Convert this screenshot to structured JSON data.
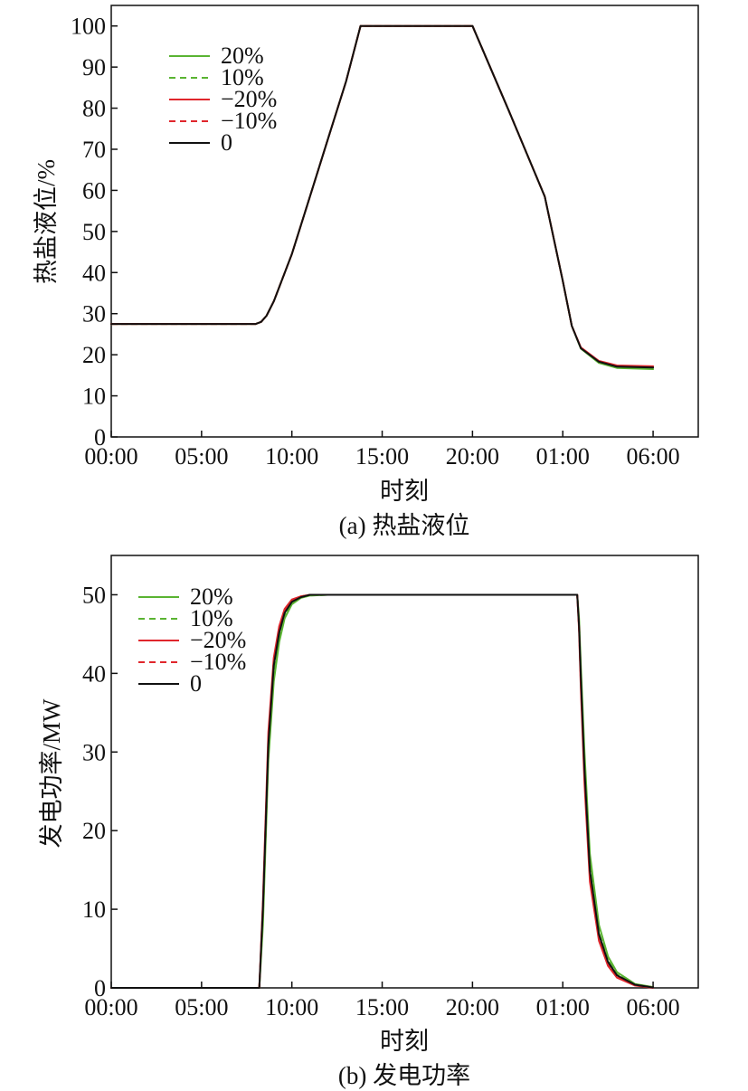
{
  "charts": [
    {
      "id": "a",
      "caption": "(a) 热盐液位",
      "ylabel": "热盐液位/%",
      "xlabel": "时刻",
      "y_ticks": [
        "0",
        "10",
        "20",
        "30",
        "40",
        "50",
        "60",
        "70",
        "80",
        "90",
        "100"
      ],
      "x_ticks": [
        "00:00",
        "05:00",
        "10:00",
        "15:00",
        "20:00",
        "01:00",
        "06:00"
      ]
    },
    {
      "id": "b",
      "caption": "(b) 发电功率",
      "ylabel": "发电功率/MW",
      "xlabel": "时刻",
      "y_ticks": [
        "0",
        "10",
        "20",
        "30",
        "40",
        "50"
      ],
      "x_ticks": [
        "00:00",
        "05:00",
        "10:00",
        "15:00",
        "20:00",
        "01:00",
        "06:00"
      ]
    }
  ],
  "chart_data": [
    {
      "type": "line",
      "title": "",
      "caption": "(a) 热盐液位",
      "xlabel": "时刻",
      "ylabel": "热盐液位/%",
      "x_unit": "hours since 00:00 (00:00 → 06:00 next day)",
      "xlim": [
        0,
        32.5
      ],
      "ylim": [
        0,
        105
      ],
      "x_tick_positions": [
        0,
        5,
        10,
        15,
        20,
        25,
        30
      ],
      "x_tick_labels": [
        "00:00",
        "05:00",
        "10:00",
        "15:00",
        "20:00",
        "01:00",
        "06:00"
      ],
      "grid": false,
      "legend_position": "top-left",
      "series": [
        {
          "name": "20%",
          "color": "#5ab432",
          "dash": "solid",
          "x": [
            0,
            8.0,
            8.3,
            8.6,
            9.0,
            10.0,
            11.0,
            12.0,
            13.0,
            13.8,
            15.0,
            17.0,
            20.0,
            22.0,
            24.0,
            25.0,
            25.5,
            26.0,
            27.0,
            28.0,
            30.0
          ],
          "y": [
            27.5,
            27.5,
            28.0,
            29.5,
            33.0,
            44.5,
            58.5,
            72.5,
            86.5,
            100,
            100,
            100,
            100,
            79.5,
            58.5,
            38.0,
            27.0,
            21.5,
            18.0,
            16.8,
            16.5
          ]
        },
        {
          "name": "10%",
          "color": "#5ab432",
          "dash": "dashed",
          "x": [
            0,
            8.0,
            8.3,
            8.6,
            9.0,
            10.0,
            11.0,
            12.0,
            13.0,
            13.8,
            15.0,
            17.0,
            20.0,
            22.0,
            24.0,
            25.0,
            25.5,
            26.0,
            27.0,
            28.0,
            30.0
          ],
          "y": [
            27.5,
            27.5,
            28.0,
            29.5,
            33.0,
            44.5,
            58.5,
            72.5,
            86.5,
            100,
            100,
            100,
            100,
            79.5,
            58.5,
            38.0,
            27.0,
            21.6,
            18.2,
            17.0,
            16.7
          ]
        },
        {
          "name": "−20%",
          "color": "#e0262c",
          "dash": "solid",
          "x": [
            0,
            8.0,
            8.3,
            8.6,
            9.0,
            10.0,
            11.0,
            12.0,
            13.0,
            13.8,
            15.0,
            17.0,
            20.0,
            22.0,
            24.0,
            25.0,
            25.5,
            26.0,
            27.0,
            28.0,
            30.0
          ],
          "y": [
            27.5,
            27.5,
            28.0,
            29.5,
            33.0,
            44.5,
            58.5,
            72.5,
            86.5,
            100,
            100,
            100,
            100,
            79.5,
            58.5,
            38.0,
            27.0,
            21.8,
            18.5,
            17.4,
            17.2
          ]
        },
        {
          "name": "−10%",
          "color": "#e0262c",
          "dash": "dashed",
          "x": [
            0,
            8.0,
            8.3,
            8.6,
            9.0,
            10.0,
            11.0,
            12.0,
            13.0,
            13.8,
            15.0,
            17.0,
            20.0,
            22.0,
            24.0,
            25.0,
            25.5,
            26.0,
            27.0,
            28.0,
            30.0
          ],
          "y": [
            27.5,
            27.5,
            28.0,
            29.5,
            33.0,
            44.5,
            58.5,
            72.5,
            86.5,
            100,
            100,
            100,
            100,
            79.5,
            58.5,
            38.0,
            27.0,
            21.7,
            18.4,
            17.2,
            17.0
          ]
        },
        {
          "name": "0",
          "color": "#111111",
          "dash": "solid",
          "x": [
            0,
            8.0,
            8.3,
            8.6,
            9.0,
            10.0,
            11.0,
            12.0,
            13.0,
            13.8,
            15.0,
            17.0,
            20.0,
            22.0,
            24.0,
            25.0,
            25.5,
            26.0,
            27.0,
            28.0,
            30.0
          ],
          "y": [
            27.5,
            27.5,
            28.0,
            29.5,
            33.0,
            44.5,
            58.5,
            72.5,
            86.5,
            100,
            100,
            100,
            100,
            79.5,
            58.5,
            38.0,
            27.0,
            21.6,
            18.3,
            17.1,
            16.9
          ]
        }
      ]
    },
    {
      "type": "line",
      "title": "",
      "caption": "(b) 发电功率",
      "xlabel": "时刻",
      "ylabel": "发电功率/MW",
      "x_unit": "hours since 00:00 (00:00 → 06:00 next day)",
      "xlim": [
        0,
        32.5
      ],
      "ylim": [
        0,
        55
      ],
      "x_tick_positions": [
        0,
        5,
        10,
        15,
        20,
        25,
        30
      ],
      "x_tick_labels": [
        "00:00",
        "05:00",
        "10:00",
        "15:00",
        "20:00",
        "01:00",
        "06:00"
      ],
      "grid": false,
      "legend_position": "top-left",
      "series": [
        {
          "name": "20%",
          "color": "#5ab432",
          "dash": "solid",
          "x": [
            0,
            8.2,
            8.4,
            8.7,
            9.0,
            9.3,
            9.6,
            10.0,
            10.5,
            11.0,
            12.0,
            20.0,
            25.8,
            25.9,
            26.0,
            26.2,
            26.5,
            27.0,
            27.5,
            28.0,
            29.0,
            30.0
          ],
          "y": [
            0,
            0,
            8.0,
            29.0,
            39.0,
            44.0,
            47.0,
            48.8,
            49.6,
            49.9,
            50,
            50,
            50,
            47.0,
            41.0,
            30.0,
            17.0,
            8.0,
            4.0,
            2.0,
            0.5,
            0.1
          ]
        },
        {
          "name": "10%",
          "color": "#5ab432",
          "dash": "dashed",
          "x": [
            0,
            8.2,
            8.4,
            8.7,
            9.0,
            9.3,
            9.6,
            10.0,
            10.5,
            11.0,
            12.0,
            20.0,
            25.8,
            25.9,
            26.0,
            26.2,
            26.5,
            27.0,
            27.5,
            28.0,
            29.0,
            30.0
          ],
          "y": [
            0,
            0,
            9.0,
            30.0,
            40.0,
            44.5,
            47.3,
            49.0,
            49.7,
            49.9,
            50,
            50,
            50,
            46.5,
            40.0,
            28.5,
            15.5,
            7.0,
            3.5,
            1.7,
            0.4,
            0.1
          ]
        },
        {
          "name": "−20%",
          "color": "#e0262c",
          "dash": "solid",
          "x": [
            0,
            8.2,
            8.4,
            8.7,
            9.0,
            9.3,
            9.6,
            10.0,
            10.5,
            11.0,
            12.0,
            20.0,
            25.8,
            25.9,
            26.0,
            26.2,
            26.5,
            27.0,
            27.5,
            28.0,
            29.0,
            30.0
          ],
          "y": [
            0,
            0,
            11.0,
            32.5,
            42.0,
            46.0,
            48.2,
            49.4,
            49.8,
            50,
            50,
            50,
            50,
            45.5,
            38.0,
            26.0,
            13.5,
            6.0,
            2.8,
            1.3,
            0.3,
            0.0
          ]
        },
        {
          "name": "−10%",
          "color": "#e0262c",
          "dash": "dashed",
          "x": [
            0,
            8.2,
            8.4,
            8.7,
            9.0,
            9.3,
            9.6,
            10.0,
            10.5,
            11.0,
            12.0,
            20.0,
            25.8,
            25.9,
            26.0,
            26.2,
            26.5,
            27.0,
            27.5,
            28.0,
            29.0,
            30.0
          ],
          "y": [
            0,
            0,
            10.5,
            31.5,
            41.3,
            45.5,
            47.9,
            49.2,
            49.8,
            50,
            50,
            50,
            50,
            45.8,
            38.8,
            27.0,
            14.3,
            6.5,
            3.1,
            1.5,
            0.35,
            0.05
          ]
        },
        {
          "name": "0",
          "color": "#111111",
          "dash": "solid",
          "x": [
            0,
            8.2,
            8.4,
            8.7,
            9.0,
            9.3,
            9.6,
            10.0,
            10.5,
            11.0,
            12.0,
            20.0,
            25.8,
            25.9,
            26.0,
            26.2,
            26.5,
            27.0,
            27.5,
            28.0,
            29.0,
            30.0
          ],
          "y": [
            0,
            0,
            10.0,
            31.0,
            41.0,
            45.2,
            47.7,
            49.1,
            49.7,
            50,
            50,
            50,
            50,
            46.0,
            39.5,
            27.8,
            14.9,
            6.8,
            3.3,
            1.6,
            0.4,
            0.05
          ]
        }
      ]
    }
  ]
}
